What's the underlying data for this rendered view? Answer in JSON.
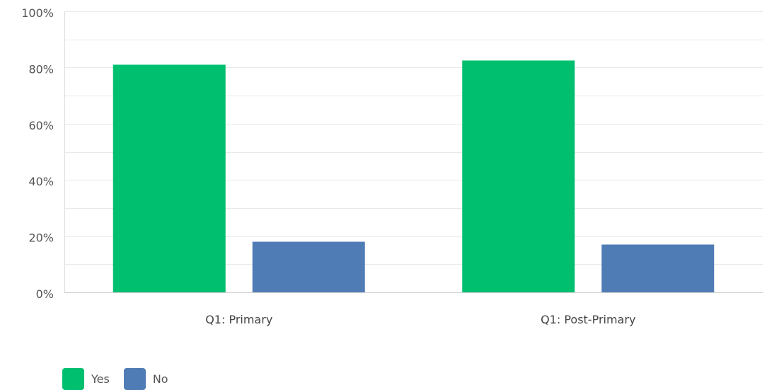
{
  "chart_data": {
    "type": "bar",
    "categories": [
      "Q1: Primary",
      "Q1: Post-Primary"
    ],
    "series": [
      {
        "name": "Yes",
        "values": [
          81,
          82.5
        ],
        "color": "#00bf6f"
      },
      {
        "name": "No",
        "values": [
          18,
          17
        ],
        "color": "#507cb6"
      }
    ],
    "ylim": [
      0,
      100
    ],
    "yticks": [
      0,
      20,
      40,
      60,
      80,
      100
    ],
    "ytick_labels": [
      "0%",
      "20%",
      "40%",
      "60%",
      "80%",
      "100%"
    ],
    "grid": true,
    "legend_position": "bottom-left"
  }
}
